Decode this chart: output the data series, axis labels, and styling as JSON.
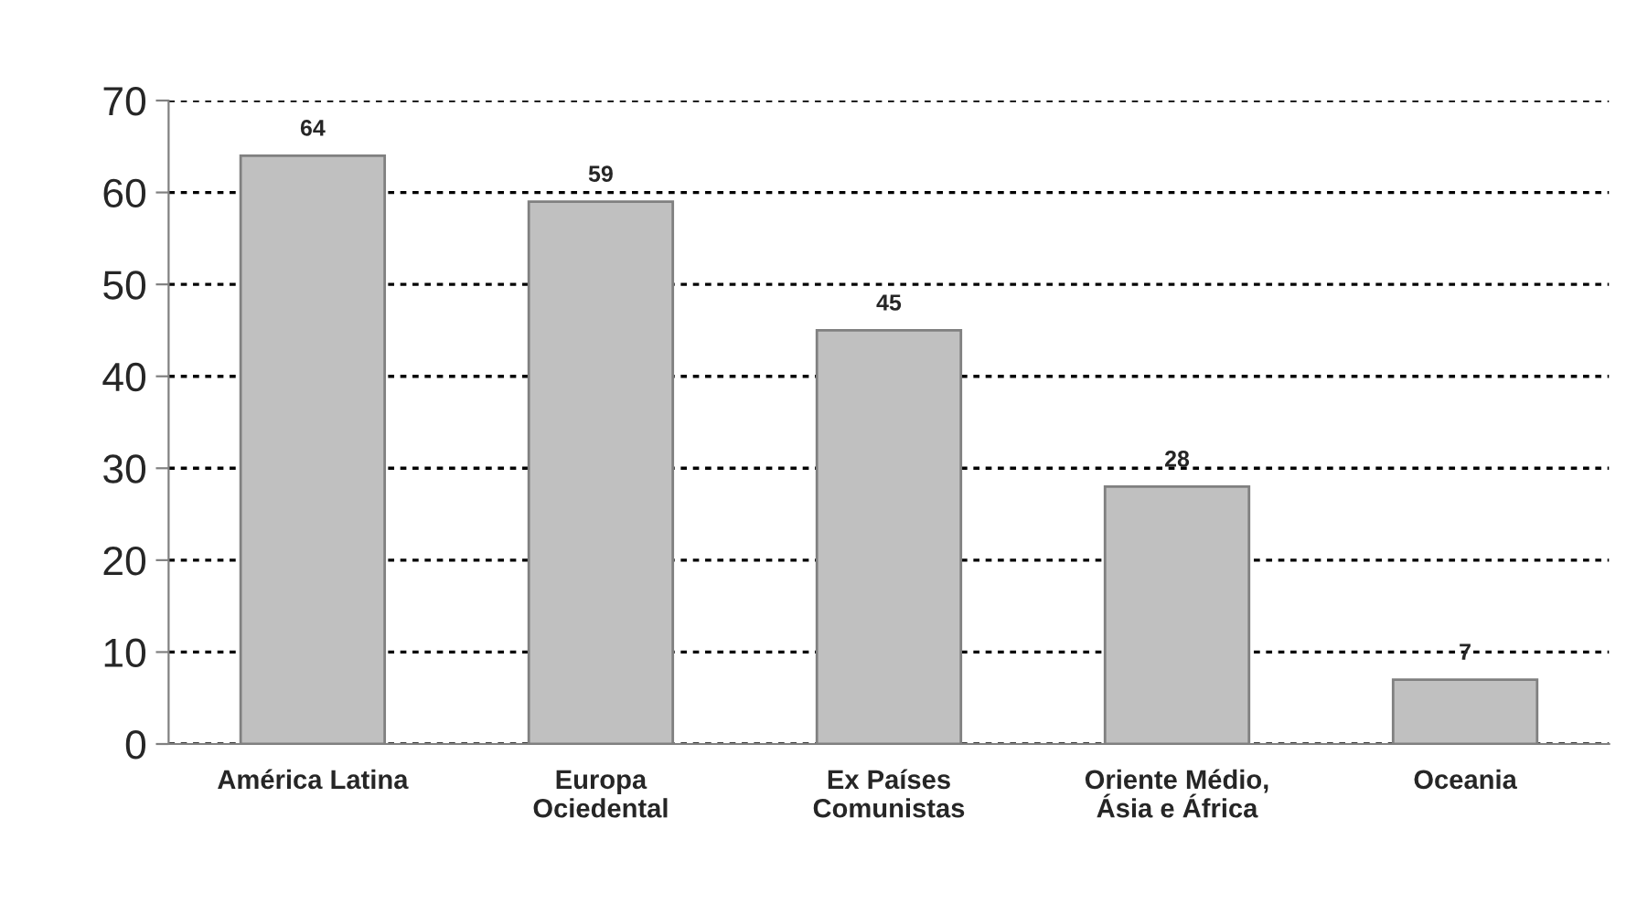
{
  "chart_data": {
    "type": "bar",
    "categories": [
      "América Latina",
      "Europa\nOciedental",
      "Ex Países\nComunistas",
      "Oriente Médio,\nÁsia e África",
      "Oceania"
    ],
    "values": [
      64,
      59,
      45,
      28,
      7
    ],
    "color": "#c0c0c0",
    "ylim": [
      0,
      70
    ],
    "yticks": [
      0,
      10,
      20,
      30,
      40,
      50,
      60,
      70
    ],
    "grid": "y",
    "data_labels": true
  }
}
